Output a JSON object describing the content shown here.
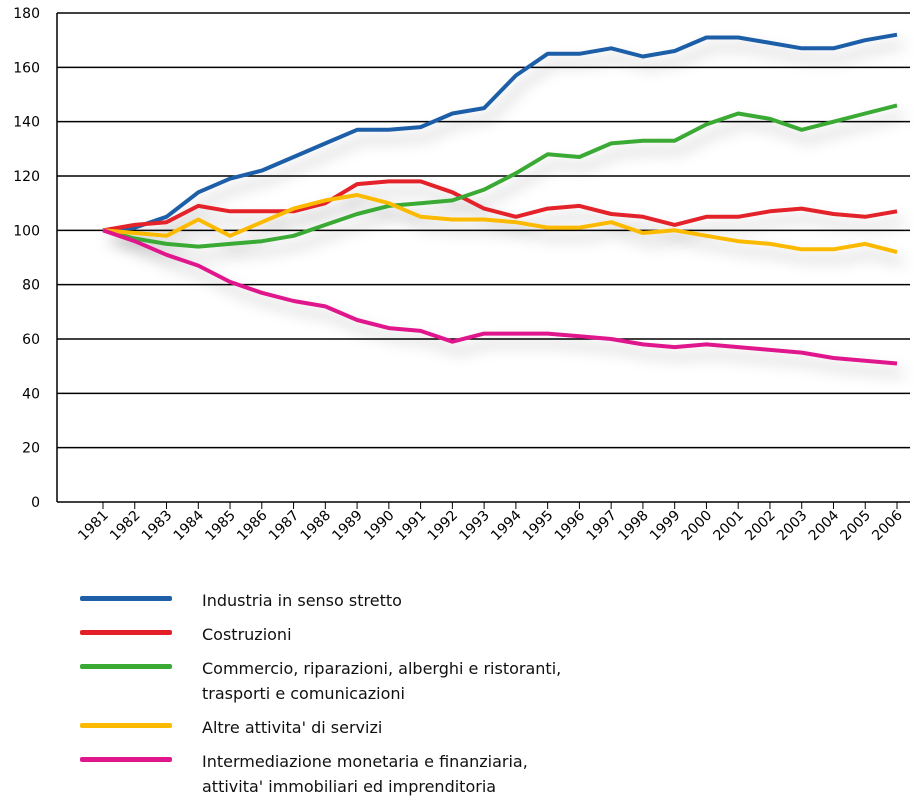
{
  "chart_data": {
    "type": "line",
    "categories": [
      "1981",
      "1982",
      "1983",
      "1984",
      "1985",
      "1986",
      "1987",
      "1988",
      "1989",
      "1990",
      "1991",
      "1992",
      "1993",
      "1994",
      "1995",
      "1996",
      "1997",
      "1998",
      "1999",
      "2000",
      "2001",
      "2002",
      "2003",
      "2004",
      "2005",
      "2006"
    ],
    "ylim": [
      0,
      180
    ],
    "yticks": [
      0,
      20,
      40,
      60,
      80,
      100,
      120,
      140,
      160,
      180
    ],
    "grid": true,
    "series": [
      {
        "name": "Industria in senso stretto",
        "color": "#1f5fa8",
        "values": [
          100,
          101,
          105,
          114,
          119,
          122,
          127,
          132,
          137,
          137,
          138,
          143,
          145,
          157,
          165,
          165,
          167,
          164,
          166,
          171,
          171,
          169,
          167,
          167,
          170,
          172
        ]
      },
      {
        "name": "Costruzioni",
        "color": "#e3202a",
        "values": [
          100,
          102,
          103,
          109,
          107,
          107,
          107,
          110,
          117,
          118,
          118,
          114,
          108,
          105,
          108,
          109,
          106,
          105,
          102,
          105,
          105,
          107,
          108,
          106,
          105,
          107
        ]
      },
      {
        "name": "Commercio, riparazioni, alberghi e ristoranti,\ntrasporti e comunicazioni",
        "color": "#3aaa35",
        "values": [
          100,
          97,
          95,
          94,
          95,
          96,
          98,
          102,
          106,
          109,
          110,
          111,
          115,
          121,
          128,
          127,
          132,
          133,
          133,
          139,
          143,
          141,
          137,
          140,
          143,
          146
        ]
      },
      {
        "name": "Altre attivita' di servizi",
        "color": "#fbb900",
        "values": [
          100,
          99,
          98,
          104,
          98,
          103,
          108,
          111,
          113,
          110,
          105,
          104,
          104,
          103,
          101,
          101,
          103,
          99,
          100,
          98,
          96,
          95,
          93,
          93,
          95,
          92
        ]
      },
      {
        "name": "Intermediazione monetaria e finanziaria,\nattivita' immobiliari ed imprenditoria",
        "color": "#e0168c",
        "values": [
          100,
          96,
          91,
          87,
          81,
          77,
          74,
          72,
          67,
          64,
          63,
          59,
          62,
          62,
          62,
          61,
          60,
          58,
          57,
          58,
          57,
          56,
          55,
          53,
          52,
          51
        ]
      }
    ]
  }
}
